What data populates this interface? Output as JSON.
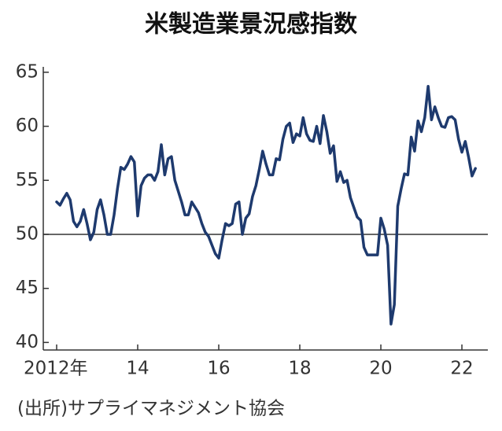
{
  "chart_data": {
    "type": "line",
    "title": "米製造業景況感指数",
    "source": "(出所)サプライマネジメント協会",
    "x": [
      2012,
      2012.083,
      2012.167,
      2012.25,
      2012.333,
      2012.417,
      2012.5,
      2012.583,
      2012.667,
      2012.75,
      2012.833,
      2012.917,
      2013,
      2013.083,
      2013.167,
      2013.25,
      2013.333,
      2013.417,
      2013.5,
      2013.583,
      2013.667,
      2013.75,
      2013.833,
      2013.917,
      2014,
      2014.083,
      2014.167,
      2014.25,
      2014.333,
      2014.417,
      2014.5,
      2014.583,
      2014.667,
      2014.75,
      2014.833,
      2014.917,
      2015,
      2015.083,
      2015.167,
      2015.25,
      2015.333,
      2015.417,
      2015.5,
      2015.583,
      2015.667,
      2015.75,
      2015.833,
      2015.917,
      2016,
      2016.083,
      2016.167,
      2016.25,
      2016.333,
      2016.417,
      2016.5,
      2016.583,
      2016.667,
      2016.75,
      2016.833,
      2016.917,
      2017,
      2017.083,
      2017.167,
      2017.25,
      2017.333,
      2017.417,
      2017.5,
      2017.583,
      2017.667,
      2017.75,
      2017.833,
      2017.917,
      2018,
      2018.083,
      2018.167,
      2018.25,
      2018.333,
      2018.417,
      2018.5,
      2018.583,
      2018.667,
      2018.75,
      2018.833,
      2018.917,
      2019,
      2019.083,
      2019.167,
      2019.25,
      2019.333,
      2019.417,
      2019.5,
      2019.583,
      2019.667,
      2019.75,
      2019.833,
      2019.917,
      2020,
      2020.083,
      2020.167,
      2020.25,
      2020.333,
      2020.417,
      2020.5,
      2020.583,
      2020.667,
      2020.75,
      2020.833,
      2020.917,
      2021,
      2021.083,
      2021.167,
      2021.25,
      2021.333,
      2021.417,
      2021.5,
      2021.583,
      2021.667,
      2021.75,
      2021.833,
      2021.917,
      2022,
      2022.083,
      2022.167,
      2022.25,
      2022.333
    ],
    "series": [
      {
        "color": "#1e3a6e",
        "values": [
          53.0,
          52.7,
          53.3,
          53.8,
          53.2,
          51.2,
          50.7,
          51.2,
          52.3,
          51.0,
          49.5,
          50.2,
          52.3,
          53.2,
          51.8,
          50.0,
          50.0,
          51.8,
          54.2,
          56.2,
          56.0,
          56.5,
          57.2,
          56.7,
          51.7,
          54.5,
          55.2,
          55.5,
          55.5,
          55.0,
          55.8,
          58.3,
          55.5,
          57.0,
          57.2,
          55.0,
          54.0,
          53.0,
          51.8,
          51.8,
          53.0,
          52.5,
          52.0,
          51.0,
          50.2,
          49.8,
          49.0,
          48.2,
          47.8,
          49.5,
          51.0,
          50.8,
          51.0,
          52.8,
          53.0,
          50.0,
          51.5,
          51.9,
          53.5,
          54.5,
          56.0,
          57.7,
          56.5,
          55.5,
          55.5,
          57.0,
          56.9,
          58.8,
          60.0,
          60.3,
          58.5,
          59.3,
          59.1,
          60.8,
          59.3,
          58.7,
          58.6,
          60.0,
          58.4,
          61.0,
          59.5,
          57.5,
          58.2,
          54.9,
          55.8,
          54.8,
          55.0,
          53.4,
          52.5,
          51.6,
          51.3,
          48.8,
          48.1,
          48.1,
          48.1,
          48.1,
          51.5,
          50.5,
          49.0,
          41.7,
          43.5,
          52.6,
          54.2,
          55.6,
          55.5,
          59.0,
          57.7,
          60.5,
          59.5,
          60.8,
          63.7,
          60.6,
          61.8,
          60.8,
          60.0,
          59.9,
          60.8,
          60.9,
          60.6,
          58.8,
          57.6,
          58.6,
          57.1,
          55.4,
          56.1
        ]
      }
    ],
    "xlim": [
      2011.67,
      2022.64
    ],
    "xticks": [
      {
        "value": 2012,
        "label": "2012年"
      },
      {
        "value": 2014,
        "label": "14"
      },
      {
        "value": 2016,
        "label": "16"
      },
      {
        "value": 2018,
        "label": "18"
      },
      {
        "value": 2020,
        "label": "20"
      },
      {
        "value": 2022,
        "label": "22"
      }
    ],
    "ylim": [
      39.3,
      65.5
    ],
    "yticks": [
      40,
      45,
      50,
      55,
      60,
      65
    ],
    "reference_line": 50
  }
}
